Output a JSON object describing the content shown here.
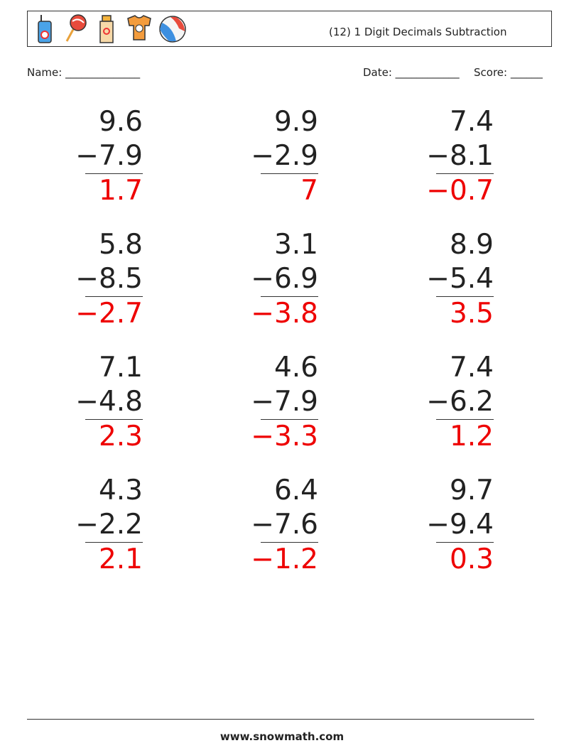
{
  "header": {
    "title": "(12) 1 Digit Decimals Subtraction"
  },
  "fields": {
    "name": "Name: ______________",
    "date": "Date: ____________",
    "score": "Score: ______"
  },
  "problems": [
    {
      "top": "9.6",
      "bottom": "−7.9",
      "answer": "1.7"
    },
    {
      "top": "9.9",
      "bottom": "−2.9",
      "answer": "7"
    },
    {
      "top": "7.4",
      "bottom": "−8.1",
      "answer": "−0.7"
    },
    {
      "top": "5.8",
      "bottom": "−8.5",
      "answer": "−2.7"
    },
    {
      "top": "3.1",
      "bottom": "−6.9",
      "answer": "−3.8"
    },
    {
      "top": "8.9",
      "bottom": "−5.4",
      "answer": "3.5"
    },
    {
      "top": "7.1",
      "bottom": "−4.8",
      "answer": "2.3"
    },
    {
      "top": "4.6",
      "bottom": "−7.9",
      "answer": "−3.3"
    },
    {
      "top": "7.4",
      "bottom": "−6.2",
      "answer": "1.2"
    },
    {
      "top": "4.3",
      "bottom": "−2.2",
      "answer": "2.1"
    },
    {
      "top": "6.4",
      "bottom": "−7.6",
      "answer": "−1.2"
    },
    {
      "top": "9.7",
      "bottom": "−9.4",
      "answer": "0.3"
    }
  ],
  "footer": "www.snowmath.com"
}
